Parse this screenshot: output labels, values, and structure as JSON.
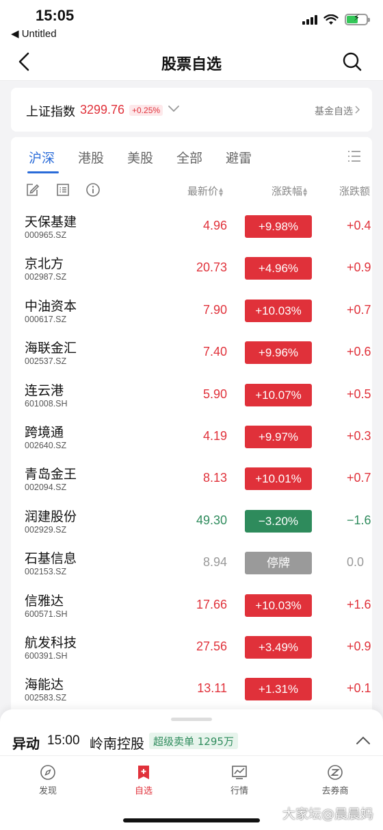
{
  "status_bar": {
    "time": "15:05",
    "back_app": "◀ Untitled"
  },
  "nav": {
    "title": "股票自选"
  },
  "index_card": {
    "name": "上证指数",
    "value": "3299.76",
    "change": "+0.25%",
    "fund_link": "基金自选"
  },
  "tabs": [
    "沪深",
    "港股",
    "美股",
    "全部",
    "避雷"
  ],
  "columns": {
    "price": "最新价",
    "pct": "涨跌幅",
    "amt": "涨跌额"
  },
  "stocks": [
    {
      "name": "天保基建",
      "code": "000965.SZ",
      "price": "4.96",
      "pct": "+9.98%",
      "amt": "+0.4",
      "trend": "up"
    },
    {
      "name": "京北方",
      "code": "002987.SZ",
      "price": "20.73",
      "pct": "+4.96%",
      "amt": "+0.9",
      "trend": "up"
    },
    {
      "name": "中油资本",
      "code": "000617.SZ",
      "price": "7.90",
      "pct": "+10.03%",
      "amt": "+0.7",
      "trend": "up"
    },
    {
      "name": "海联金汇",
      "code": "002537.SZ",
      "price": "7.40",
      "pct": "+9.96%",
      "amt": "+0.6",
      "trend": "up"
    },
    {
      "name": "连云港",
      "code": "601008.SH",
      "price": "5.90",
      "pct": "+10.07%",
      "amt": "+0.5",
      "trend": "up"
    },
    {
      "name": "跨境通",
      "code": "002640.SZ",
      "price": "4.19",
      "pct": "+9.97%",
      "amt": "+0.3",
      "trend": "up"
    },
    {
      "name": "青岛金王",
      "code": "002094.SZ",
      "price": "8.13",
      "pct": "+10.01%",
      "amt": "+0.7",
      "trend": "up"
    },
    {
      "name": "润建股份",
      "code": "002929.SZ",
      "price": "49.30",
      "pct": "−3.20%",
      "amt": "−1.6",
      "trend": "down"
    },
    {
      "name": "石基信息",
      "code": "002153.SZ",
      "price": "8.94",
      "pct": "停牌",
      "amt": "0.0",
      "trend": "flat"
    },
    {
      "name": "信雅达",
      "code": "600571.SH",
      "price": "17.66",
      "pct": "+10.03%",
      "amt": "+1.6",
      "trend": "up"
    },
    {
      "name": "航发科技",
      "code": "600391.SH",
      "price": "27.56",
      "pct": "+3.49%",
      "amt": "+0.9",
      "trend": "up"
    },
    {
      "name": "海能达",
      "code": "002583.SZ",
      "price": "13.11",
      "pct": "+1.31%",
      "amt": "+0.1",
      "trend": "up"
    }
  ],
  "alert": {
    "label": "异动",
    "time": "15:00",
    "stock": "岭南控股",
    "badge": "超级卖单 1295万"
  },
  "tab_bar": {
    "items": [
      {
        "label": "发现"
      },
      {
        "label": "自选"
      },
      {
        "label": "行情"
      },
      {
        "label": "去券商"
      }
    ]
  },
  "watermark": "大家坛@晨晨妈",
  "colors": {
    "up": "#e0313a",
    "down": "#2e8b5c",
    "flat": "#9a9a9a",
    "accent_blue": "#2a6bd8"
  },
  "icons": {
    "nav_back": "chevron-left-icon",
    "nav_search": "search-icon",
    "edit": "edit-icon",
    "list": "list-icon",
    "info": "info-icon",
    "menu": "menu-icon"
  }
}
